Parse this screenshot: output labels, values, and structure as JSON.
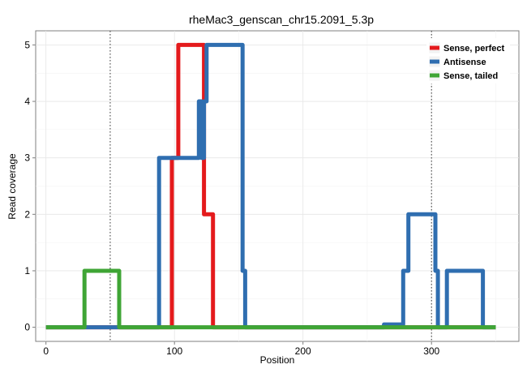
{
  "chart_data": {
    "type": "line",
    "title": "rheMac3_genscan_chr15.2091_5.3p",
    "xlabel": "Position",
    "ylabel": "Read coverage",
    "xlim": [
      -8,
      368
    ],
    "ylim": [
      -0.25,
      5.25
    ],
    "xticks": [
      0,
      100,
      200,
      300
    ],
    "yticks": [
      0,
      1,
      2,
      3,
      4,
      5
    ],
    "grid": true,
    "vlines": [
      50,
      300
    ],
    "legend_position": "top-right",
    "series": [
      {
        "name": "Sense, perfect",
        "color": "#e41a1c",
        "x": [
          0,
          98,
          98,
          103,
          103,
          123,
          123,
          130,
          130,
          350
        ],
        "y": [
          0,
          0,
          3,
          3,
          5,
          5,
          2,
          2,
          0,
          0
        ]
      },
      {
        "name": "Antisense",
        "color": "#2f6eb0",
        "x": [
          0,
          88,
          88,
          119,
          119,
          121,
          121,
          123,
          123,
          125,
          125,
          153,
          153,
          155,
          155,
          263,
          263,
          278,
          278,
          282,
          282,
          303,
          303,
          305,
          305,
          312,
          312,
          340,
          340,
          350
        ],
        "y": [
          0,
          0,
          3,
          3,
          4,
          4,
          3,
          3,
          4,
          4,
          5,
          5,
          1,
          1,
          0,
          0,
          0.05,
          0.05,
          1,
          1,
          2,
          2,
          1,
          1,
          0,
          0,
          1,
          1,
          0,
          0
        ]
      },
      {
        "name": "Sense, tailed",
        "color": "#3fa535",
        "x": [
          0,
          30,
          30,
          57,
          57,
          350
        ],
        "y": [
          0,
          0,
          1,
          1,
          0,
          0
        ]
      }
    ]
  }
}
